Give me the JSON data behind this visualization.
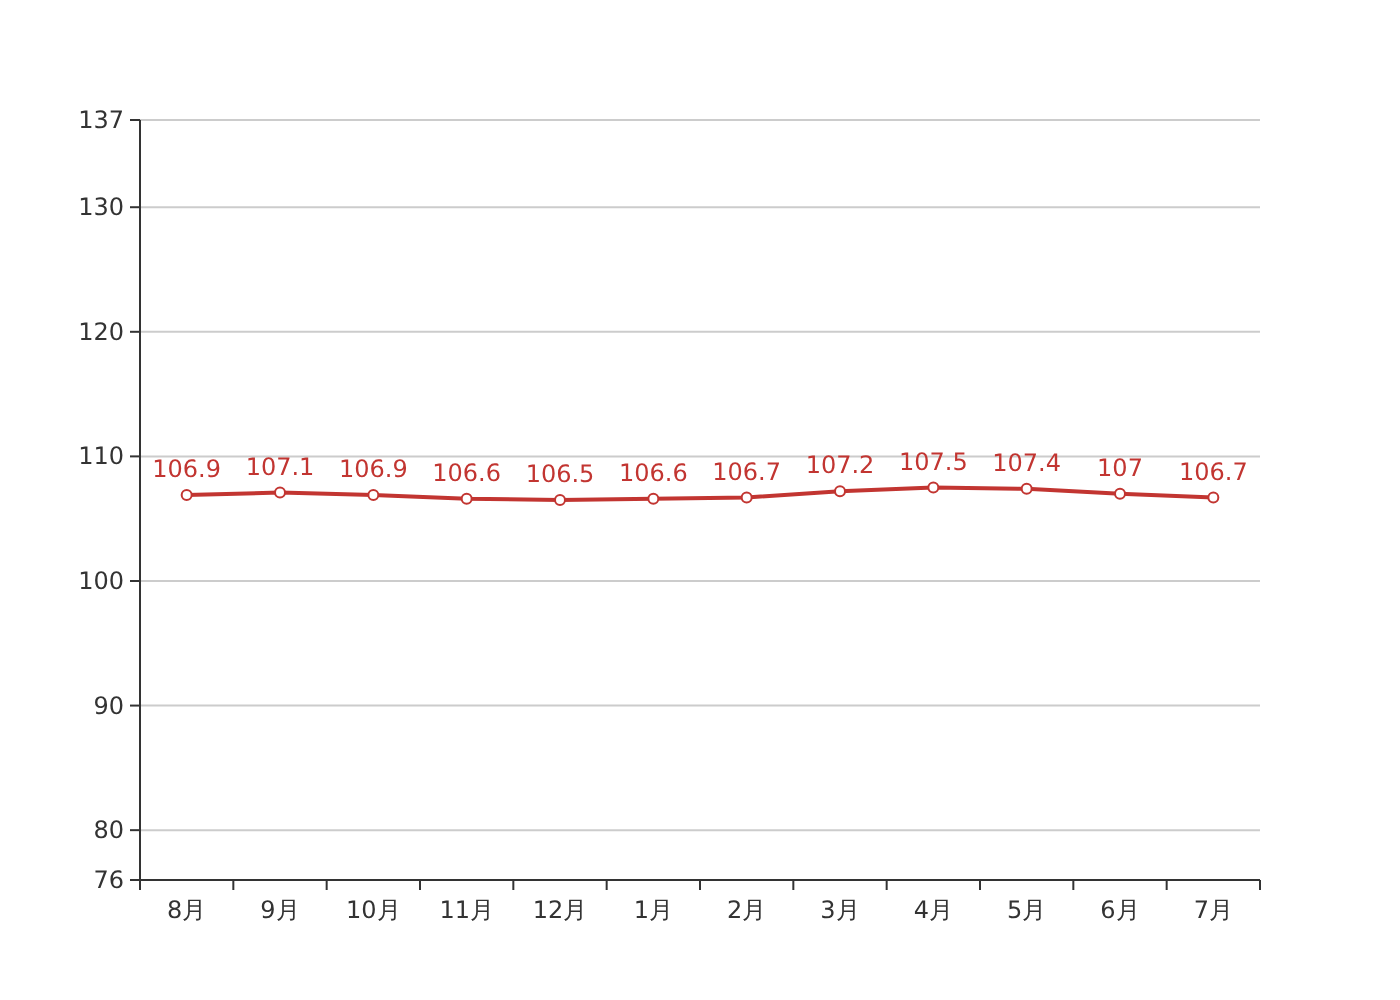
{
  "chart_data": {
    "type": "line",
    "categories": [
      "8月",
      "9月",
      "10月",
      "11月",
      "12月",
      "1月",
      "2月",
      "3月",
      "4月",
      "5月",
      "6月",
      "7月"
    ],
    "values": [
      106.9,
      107.1,
      106.9,
      106.6,
      106.5,
      106.6,
      106.7,
      107.2,
      107.5,
      107.4,
      107,
      106.7
    ],
    "color": "#c23531",
    "ylim": [
      76,
      137
    ],
    "yticks": [
      76,
      80,
      90,
      100,
      110,
      120,
      130,
      137
    ],
    "grid": "y",
    "data_labels": true,
    "marker": "circle",
    "line_style": "solid"
  }
}
